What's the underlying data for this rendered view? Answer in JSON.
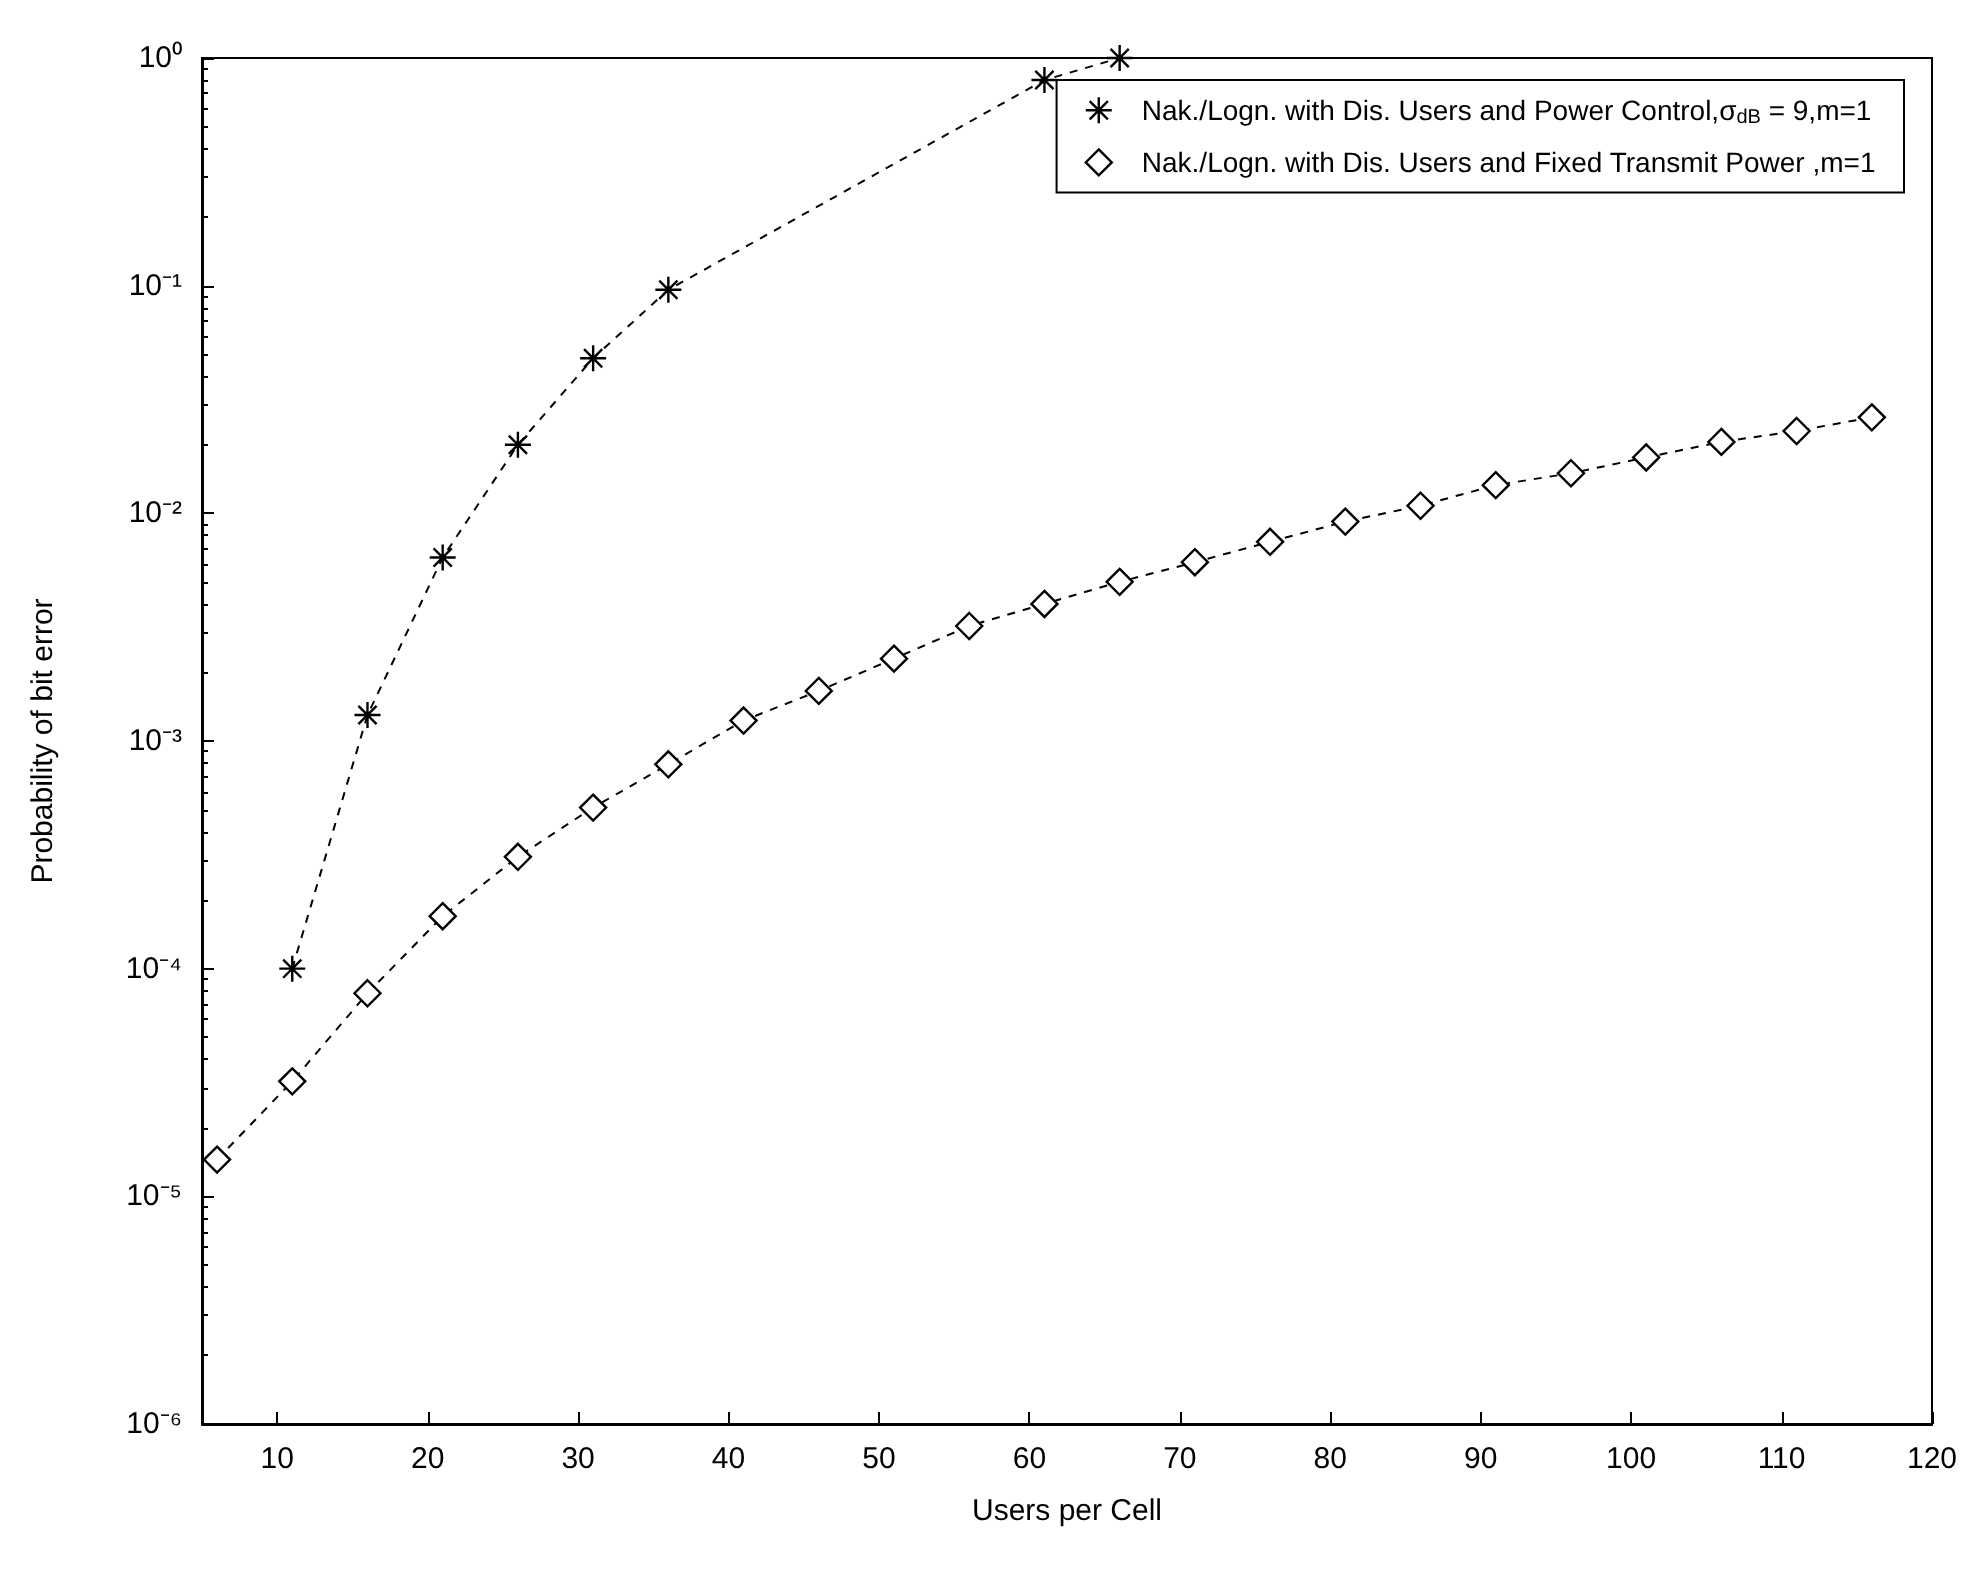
{
  "chart_data": {
    "type": "line",
    "xlabel": "Users per Cell",
    "ylabel": "Probability of bit error",
    "log": "y",
    "grid": false,
    "legend": "top right",
    "line_style": "dashed",
    "xlim": [
      5,
      120
    ],
    "xticks": [
      10,
      20,
      30,
      40,
      50,
      60,
      70,
      80,
      90,
      100,
      110,
      120
    ],
    "ylim": [
      1e-06,
      1
    ],
    "yticks": [
      {
        "value": 1e-06,
        "label": "10⁻⁶"
      },
      {
        "value": 1e-05,
        "label": "10⁻⁵"
      },
      {
        "value": 0.0001,
        "label": "10⁻⁴"
      },
      {
        "value": 0.001,
        "label": "10⁻³"
      },
      {
        "value": 0.01,
        "label": "10⁻²"
      },
      {
        "value": 0.1,
        "label": "10⁻¹"
      },
      {
        "value": 1,
        "label": "10⁰"
      }
    ],
    "series": [
      {
        "name": "Nak./Logn. with Dis. Users and Power Control,σ$_{dB}$ = 9,m=1",
        "color": "#000000",
        "marker": "cross",
        "x": [
          11,
          16,
          21,
          26,
          31,
          36,
          41,
          46,
          51,
          56,
          61,
          66
        ],
        "values": [
          0.0001,
          0.0013,
          0.0064,
          0.02,
          0.048,
          0.096,
          null,
          null,
          null,
          null,
          0.8,
          1
        ]
      },
      {
        "name": "Nak./Logn. with Dis. Users and Fixed Transmit Power ,m=1",
        "color": "#000000",
        "marker": "diamond",
        "x": [
          6,
          11,
          16,
          21,
          26,
          31,
          36,
          41,
          46,
          51,
          56,
          61,
          66,
          71,
          76,
          81,
          86,
          91,
          96,
          101,
          106,
          111,
          116
        ],
        "values": [
          1.45e-05,
          3.2e-05,
          7.8e-05,
          0.00017,
          0.00031,
          0.00051,
          0.00079,
          0.00123,
          0.00166,
          0.0023,
          0.0032,
          0.004,
          0.005,
          0.0061,
          0.0075,
          0.0092,
          0.0108,
          0.0133,
          0.015,
          0.0176,
          0.0206,
          0.023,
          0.0264
        ]
      }
    ]
  }
}
